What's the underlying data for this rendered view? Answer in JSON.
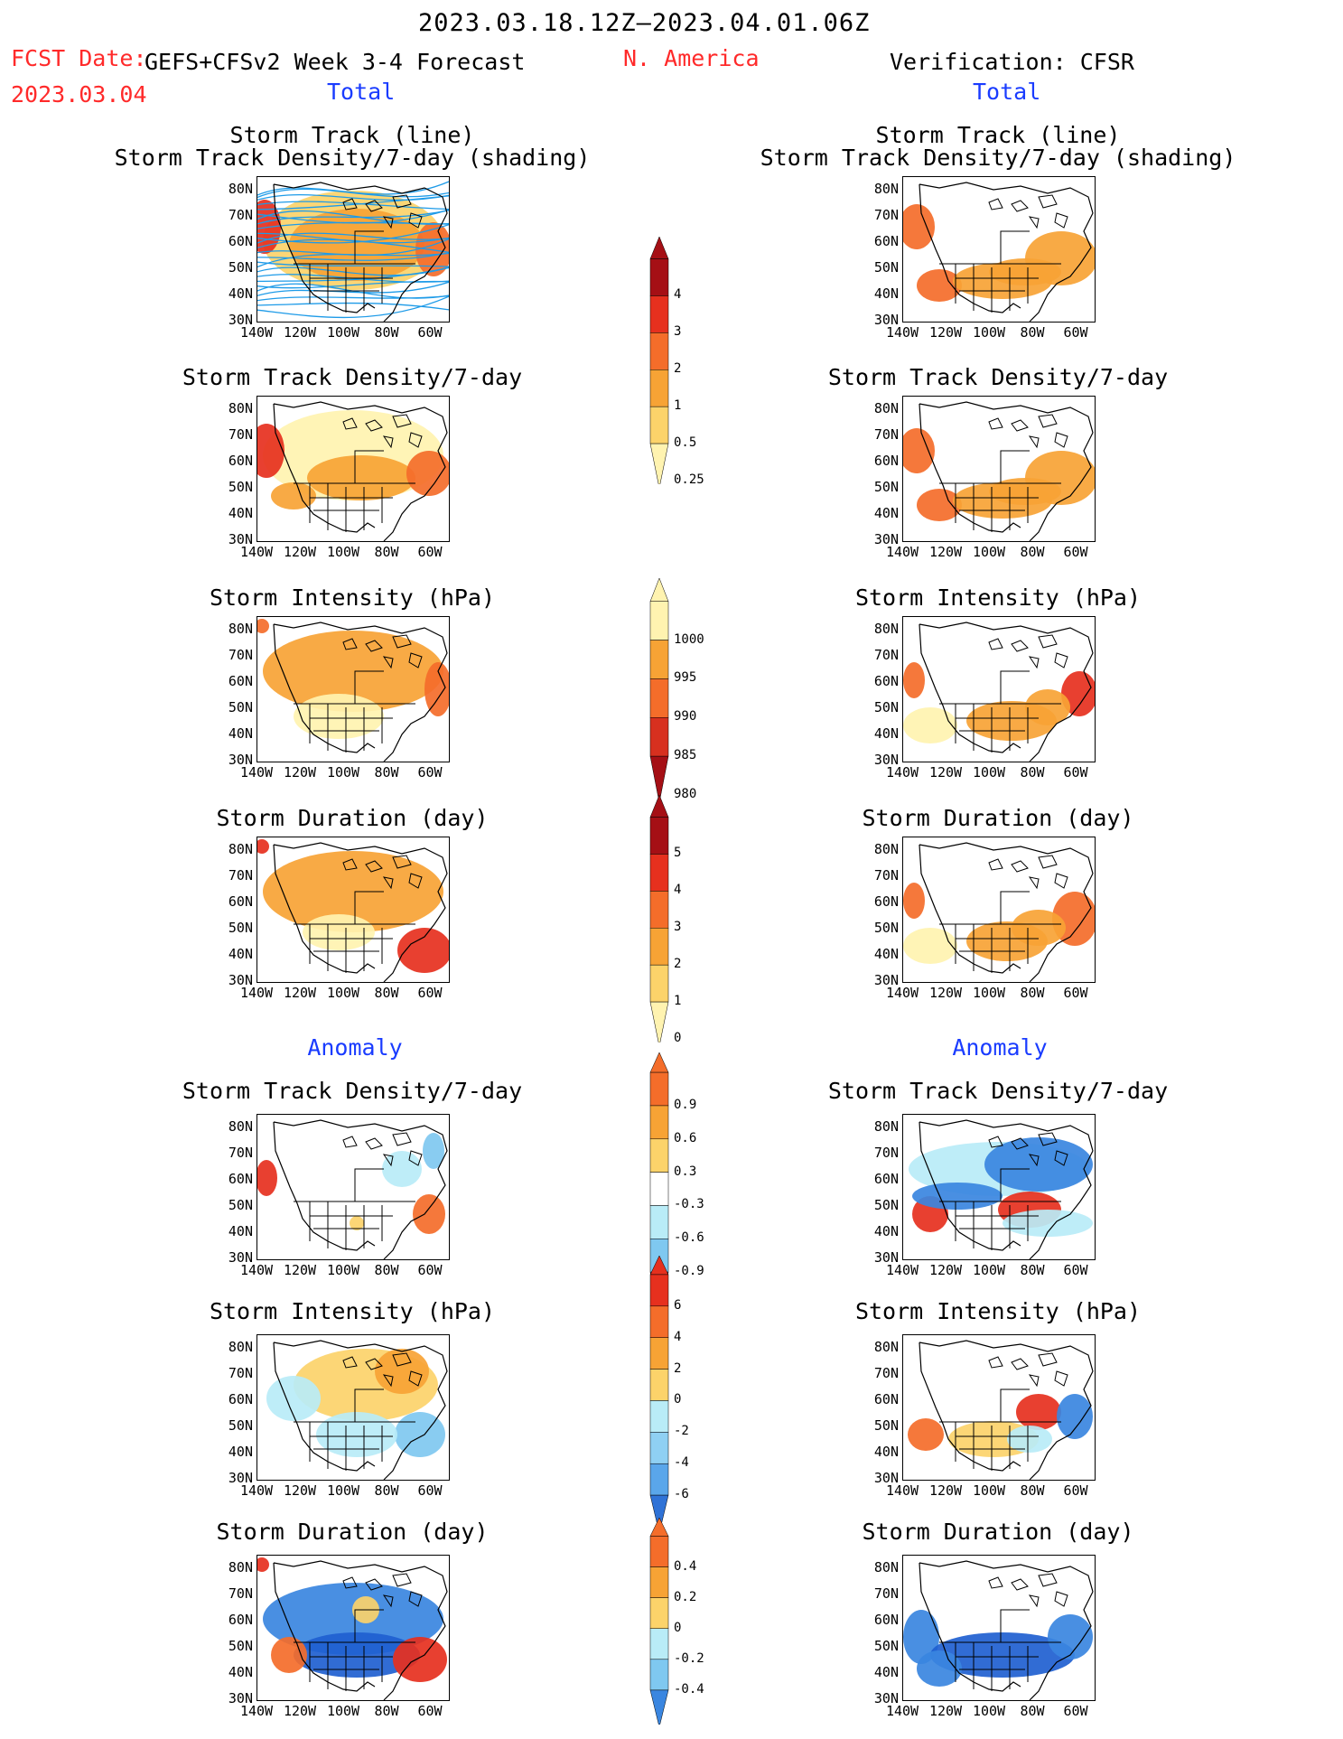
{
  "header": {
    "date_range": "2023.03.18.12Z–2023.04.01.06Z",
    "fcst_label": "FCST Date:",
    "fcst_model": "GEFS+CFSv2 Week 3-4 Forecast",
    "fcst_date": "2023.03.04",
    "region": "N. America",
    "verification": "Verification: CFSR",
    "left_section": "Total",
    "right_section": "Total",
    "left_anomaly": "Anomaly",
    "right_anomaly": "Anomaly"
  },
  "axes": {
    "lat_labels": [
      "80N",
      "70N",
      "60N",
      "50N",
      "40N",
      "30N"
    ],
    "lon_labels": [
      "140W",
      "120W",
      "100W",
      "80W",
      "60W"
    ]
  },
  "panels": {
    "left": [
      {
        "title1": "Storm Track (line)",
        "title2": "Storm Track Density/7-day (shading)"
      },
      {
        "title1": "",
        "title2": "Storm Track Density/7-day"
      },
      {
        "title1": "",
        "title2": "Storm Intensity (hPa)"
      },
      {
        "title1": "",
        "title2": "Storm Duration (day)"
      },
      {
        "title1": "",
        "title2": "Storm Track Density/7-day"
      },
      {
        "title1": "",
        "title2": "Storm Intensity (hPa)"
      },
      {
        "title1": "",
        "title2": "Storm Duration (day)"
      }
    ],
    "right": [
      {
        "title1": "Storm Track (line)",
        "title2": "Storm Track Density/7-day (shading)"
      },
      {
        "title1": "",
        "title2": "Storm Track Density/7-day"
      },
      {
        "title1": "",
        "title2": "Storm Intensity (hPa)"
      },
      {
        "title1": "",
        "title2": "Storm Duration (day)"
      },
      {
        "title1": "",
        "title2": "Storm Track Density/7-day"
      },
      {
        "title1": "",
        "title2": "Storm Intensity (hPa)"
      },
      {
        "title1": "",
        "title2": "Storm Duration (day)"
      }
    ]
  },
  "colorbars": [
    {
      "id": "density",
      "labels": [
        "4",
        "3",
        "2",
        "1",
        "0.5",
        "0.25"
      ],
      "colors": [
        "#a50f15",
        "#e6301e",
        "#f46d2a",
        "#f7a335",
        "#fcd36a",
        "#fff3b0"
      ]
    },
    {
      "id": "intensity",
      "labels": [
        "1000",
        "995",
        "990",
        "985",
        "980"
      ],
      "colors": [
        "#fff3b0",
        "#f7a335",
        "#f46d2a",
        "#d7301f",
        "#a50f15"
      ]
    },
    {
      "id": "duration",
      "labels": [
        "5",
        "4",
        "3",
        "2",
        "1",
        "0"
      ],
      "colors": [
        "#a50f15",
        "#e6301e",
        "#f46d2a",
        "#f7a335",
        "#fcd36a",
        "#fff3b0"
      ]
    },
    {
      "id": "density-anom",
      "labels": [
        "0.9",
        "0.6",
        "0.3",
        "-0.3",
        "-0.6",
        "-0.9"
      ],
      "colors": [
        "#f46d2a",
        "#f7a335",
        "#fcd36a",
        "#ffffff",
        "#b9ecf7",
        "#7fc8f0",
        "#3a86e0"
      ]
    },
    {
      "id": "intensity-anom",
      "labels": [
        "6",
        "4",
        "2",
        "0",
        "-2",
        "-4",
        "-6"
      ],
      "colors": [
        "#e6301e",
        "#f46d2a",
        "#f7a335",
        "#fcd36a",
        "#b9ecf7",
        "#8fd0f3",
        "#5aa6ea",
        "#2f72d6"
      ]
    },
    {
      "id": "duration-anom",
      "labels": [
        "0.4",
        "0.2",
        "0",
        "-0.2",
        "-0.4"
      ],
      "colors": [
        "#f46d2a",
        "#f7a335",
        "#fcd36a",
        "#b9ecf7",
        "#7fc8f0",
        "#3a86e0"
      ]
    }
  ],
  "colors": {
    "header_red": "#ff2a2a",
    "section_blue": "#1a3cff",
    "track_line": "#1e9be8"
  }
}
